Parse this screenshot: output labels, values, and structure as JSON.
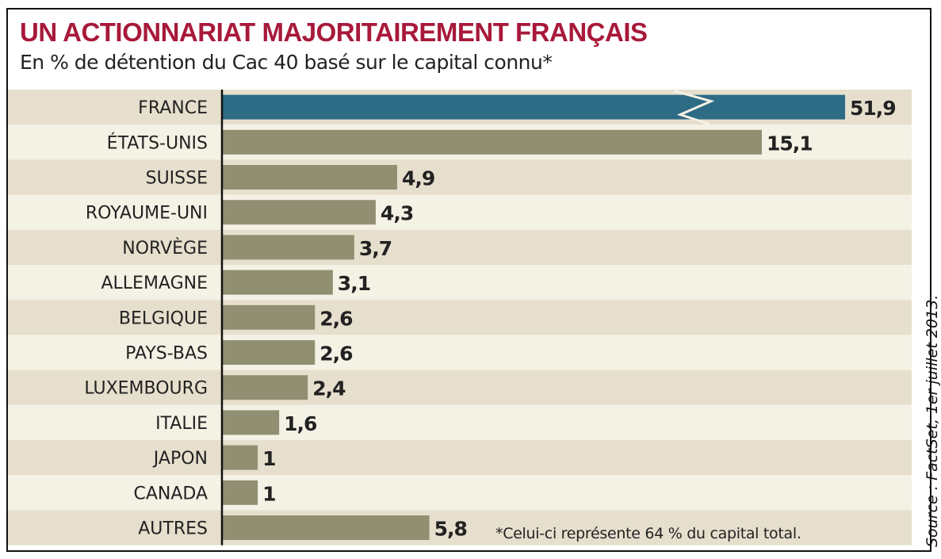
{
  "chart_data": {
    "type": "bar",
    "orientation": "horizontal",
    "title": "UN ACTIONNARIAT MAJORITAIREMENT FRANÇAIS",
    "subtitle": "En % de détention du Cac 40 basé sur le capital connu*",
    "categories": [
      "FRANCE",
      "ÉTATS-UNIS",
      "SUISSE",
      "ROYAUME-UNI",
      "NORVÈGE",
      "ALLEMAGNE",
      "BELGIQUE",
      "PAYS-BAS",
      "LUXEMBOURG",
      "ITALIE",
      "JAPON",
      "CANADA",
      "AUTRES"
    ],
    "values": [
      51.9,
      15.1,
      4.9,
      4.3,
      3.7,
      3.1,
      2.6,
      2.6,
      2.4,
      1.6,
      1,
      1,
      5.8
    ],
    "value_labels": [
      "51,9",
      "15,1",
      "4,9",
      "4,3",
      "3,7",
      "3,1",
      "2,6",
      "2,6",
      "2,4",
      "1,6",
      "1",
      "1",
      "5,8"
    ],
    "broken_bar": "FRANCE",
    "footnote": "*Celui-ci représente 64 % du capital total.",
    "source": "Source : FactSet, 1er juillet 2013.",
    "colors": {
      "title": "#a8193a",
      "highlight": "#2e6b85",
      "bar": "#918f71",
      "row_dark": "#e6dfcd",
      "row_light": "#f4f1e5"
    }
  }
}
